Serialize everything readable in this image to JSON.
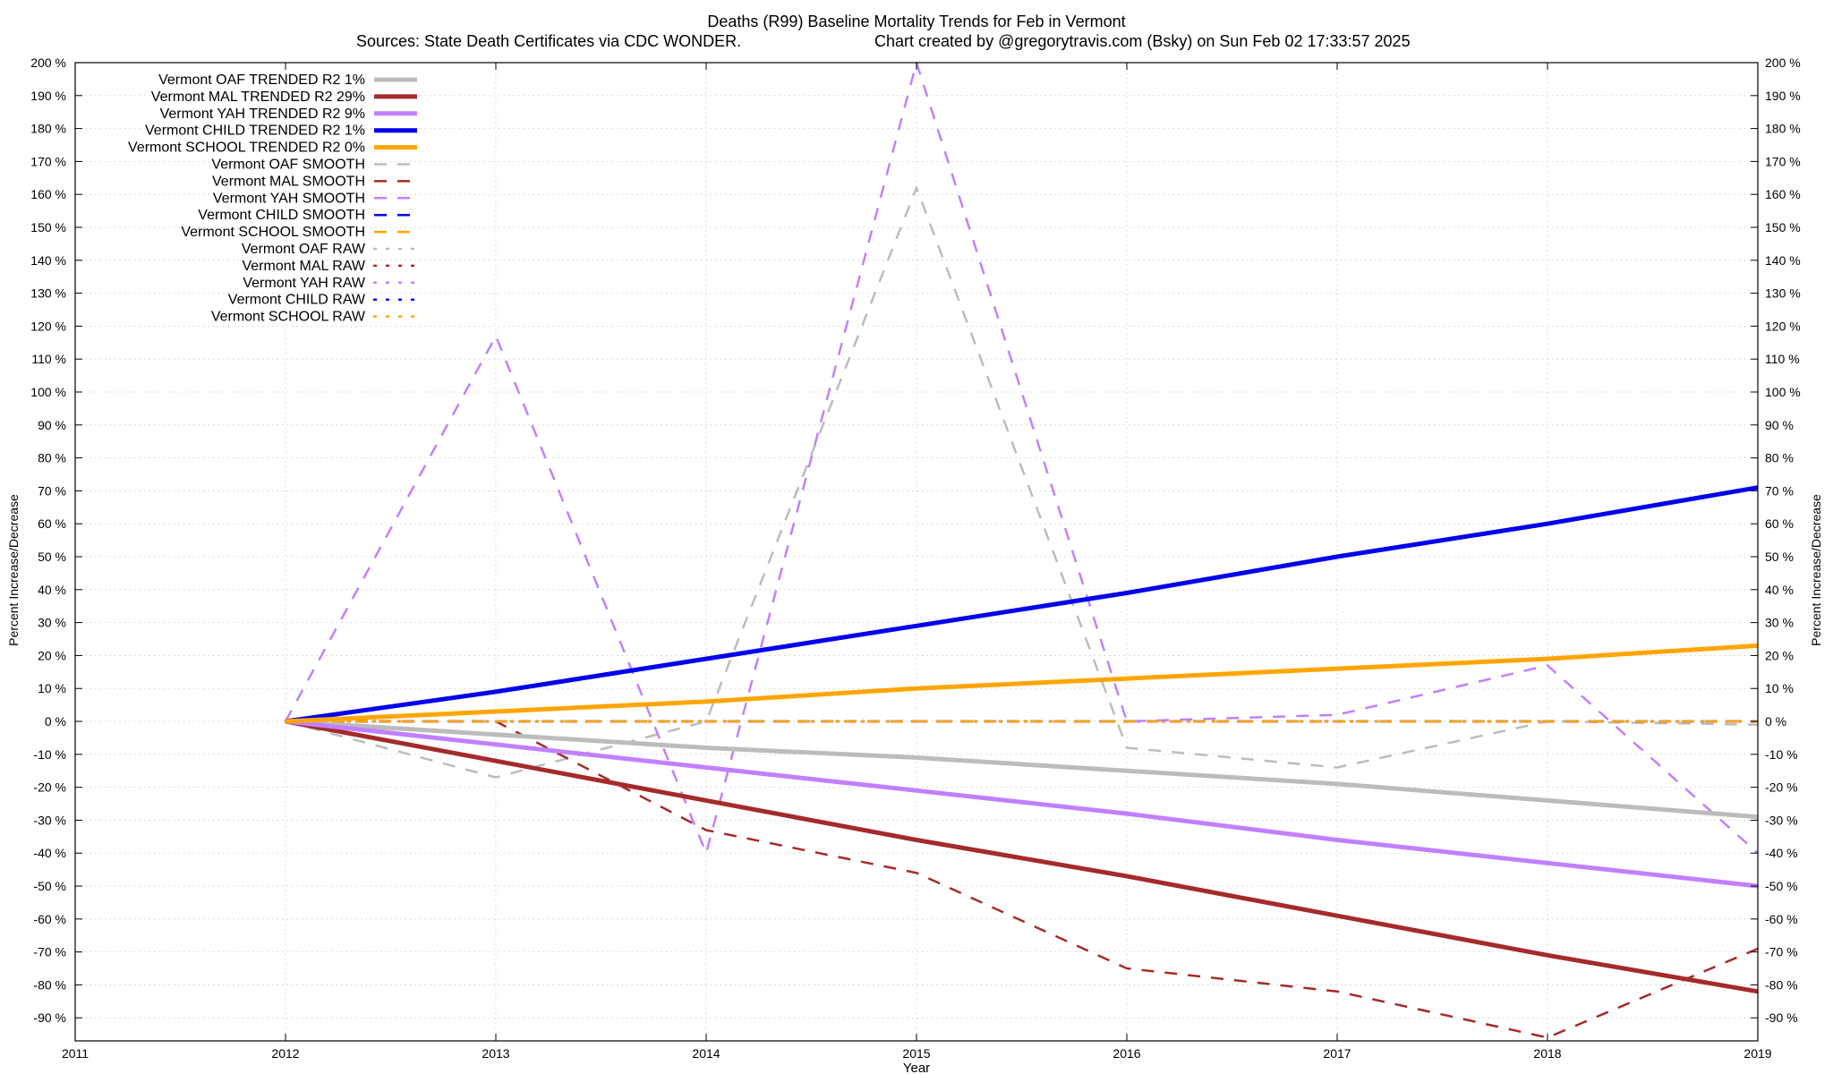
{
  "chart_data": {
    "type": "line",
    "title": "Deaths (R99)  Baseline Mortality Trends for Feb in Vermont",
    "subtitle_left": "Sources: State Death Certificates via CDC WONDER.",
    "subtitle_right": "Chart created by @gregorytravis.com (Bsky) on Sun Feb 02 17:33:57 2025",
    "xlabel": "Year",
    "ylabel": "Percent Increase/Decrease",
    "xlim": [
      2011,
      2019
    ],
    "ylim": [
      -97,
      200
    ],
    "x_ticks": [
      2011,
      2012,
      2013,
      2014,
      2015,
      2016,
      2017,
      2018,
      2019
    ],
    "y_ticks": [
      200,
      190,
      180,
      170,
      160,
      150,
      140,
      130,
      120,
      110,
      100,
      90,
      80,
      70,
      60,
      50,
      40,
      30,
      20,
      10,
      0,
      -10,
      -20,
      -30,
      -40,
      -50,
      -60,
      -70,
      -80,
      -90
    ],
    "y_tick_suffix": " %",
    "grid": true,
    "legend_position": "top-left",
    "series": [
      {
        "name": "Vermont OAF TRENDED R2  1%",
        "style": "solid",
        "color": "#bcbcbc",
        "x": [
          2012,
          2013,
          2014,
          2015,
          2016,
          2017,
          2018,
          2019
        ],
        "y": [
          0,
          -4,
          -8,
          -11,
          -15,
          -19,
          -24,
          -29
        ]
      },
      {
        "name": "Vermont MAL TRENDED R2  29%",
        "style": "solid",
        "color": "#a52a2a",
        "x": [
          2012,
          2013,
          2014,
          2015,
          2016,
          2017,
          2018,
          2019
        ],
        "y": [
          0,
          -12,
          -24,
          -36,
          -47,
          -59,
          -71,
          -82
        ]
      },
      {
        "name": "Vermont YAH TRENDED R2  9%",
        "style": "solid",
        "color": "#c080ff",
        "x": [
          2012,
          2013,
          2014,
          2015,
          2016,
          2017,
          2018,
          2019
        ],
        "y": [
          0,
          -7,
          -14,
          -21,
          -28,
          -36,
          -43,
          -50
        ]
      },
      {
        "name": "Vermont CHILD TRENDED R2  1%",
        "style": "solid",
        "color": "#0000ee",
        "x": [
          2012,
          2013,
          2014,
          2015,
          2016,
          2017,
          2018,
          2019
        ],
        "y": [
          0,
          9,
          19,
          29,
          39,
          50,
          60,
          71
        ]
      },
      {
        "name": "Vermont SCHOOL TRENDED R2  0%",
        "style": "solid",
        "color": "#ffa500",
        "x": [
          2012,
          2013,
          2014,
          2015,
          2016,
          2017,
          2018,
          2019
        ],
        "y": [
          0,
          3,
          6,
          10,
          13,
          16,
          19,
          23
        ]
      },
      {
        "name": "Vermont OAF SMOOTH",
        "style": "dashed",
        "color": "#bcbcbc",
        "x": [
          2012,
          2013,
          2014,
          2015,
          2016,
          2017,
          2018,
          2019
        ],
        "y": [
          0,
          -17,
          0,
          162,
          -8,
          -14,
          0,
          -1
        ]
      },
      {
        "name": "Vermont MAL SMOOTH",
        "style": "dashed",
        "color": "#a52a2a",
        "x": [
          2012,
          2013,
          2014,
          2015,
          2016,
          2017,
          2018,
          2019
        ],
        "y": [
          0,
          0,
          -33,
          -46,
          -75,
          -82,
          -96,
          -69
        ]
      },
      {
        "name": "Vermont YAH SMOOTH",
        "style": "dashed",
        "color": "#c080ff",
        "x": [
          2012,
          2013,
          2014,
          2015,
          2016,
          2017,
          2018,
          2019
        ],
        "y": [
          0,
          117,
          -40,
          200,
          0,
          2,
          17,
          -40
        ]
      },
      {
        "name": "Vermont CHILD SMOOTH",
        "style": "dashed",
        "color": "#0000ee",
        "x": [
          2012,
          2013,
          2014,
          2015,
          2016,
          2017,
          2018,
          2019
        ],
        "y": [
          0,
          0,
          0,
          0,
          0,
          0,
          0,
          0
        ]
      },
      {
        "name": "Vermont SCHOOL SMOOTH",
        "style": "dashed",
        "color": "#ffa500",
        "x": [
          2012,
          2013,
          2014,
          2015,
          2016,
          2017,
          2018,
          2019
        ],
        "y": [
          0,
          0,
          0,
          0,
          0,
          0,
          0,
          0
        ]
      },
      {
        "name": "Vermont OAF RAW",
        "style": "dotted",
        "color": "#bcbcbc",
        "x": [
          2012,
          2013,
          2014,
          2015,
          2016,
          2017,
          2018,
          2019
        ],
        "y": [
          0,
          0,
          0,
          0,
          0,
          0,
          0,
          0
        ]
      },
      {
        "name": "Vermont MAL RAW",
        "style": "dotted",
        "color": "#a52a2a",
        "x": [
          2012,
          2013,
          2014,
          2015,
          2016,
          2017,
          2018,
          2019
        ],
        "y": [
          0,
          0,
          0,
          0,
          0,
          0,
          0,
          0
        ]
      },
      {
        "name": "Vermont YAH RAW",
        "style": "dotted",
        "color": "#c080ff",
        "x": [
          2012,
          2013,
          2014,
          2015,
          2016,
          2017,
          2018,
          2019
        ],
        "y": [
          0,
          0,
          0,
          0,
          0,
          0,
          0,
          0
        ]
      },
      {
        "name": "Vermont CHILD RAW",
        "style": "dotted",
        "color": "#0000ee",
        "x": [
          2012,
          2013,
          2014,
          2015,
          2016,
          2017,
          2018,
          2019
        ],
        "y": [
          0,
          0,
          0,
          0,
          0,
          0,
          0,
          0
        ]
      },
      {
        "name": "Vermont SCHOOL RAW",
        "style": "dotted",
        "color": "#ffa500",
        "x": [
          2012,
          2013,
          2014,
          2015,
          2016,
          2017,
          2018,
          2019
        ],
        "y": [
          0,
          0,
          0,
          0,
          0,
          0,
          0,
          0
        ]
      }
    ]
  }
}
